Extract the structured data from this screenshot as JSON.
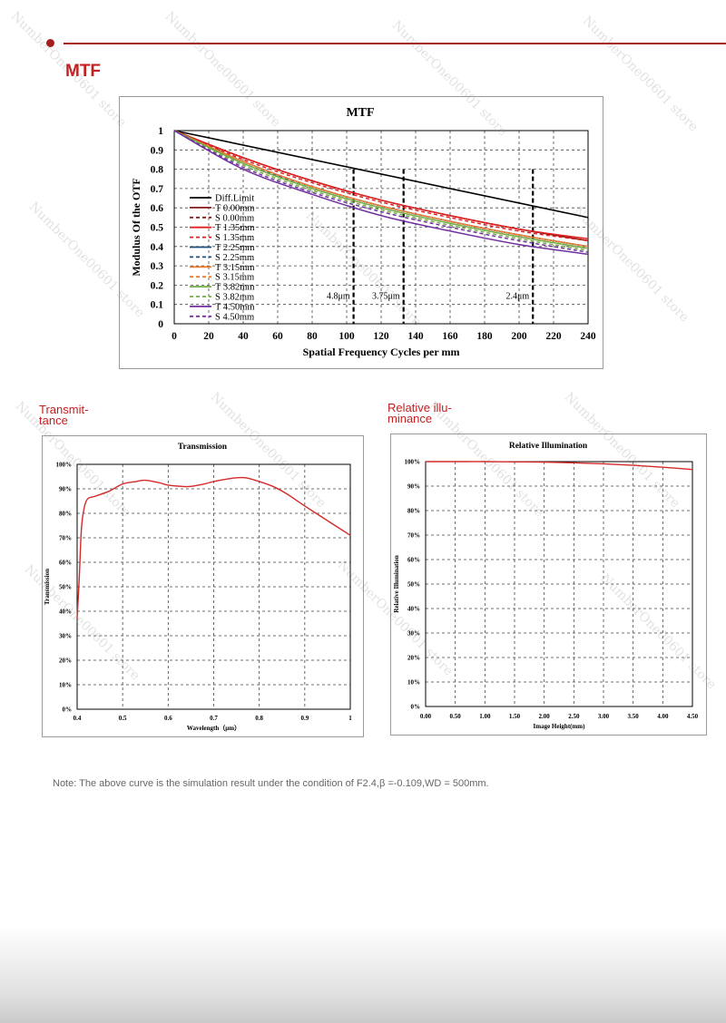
{
  "section_title": "MTF",
  "transmittance_label": "Transmit-\ntance",
  "illumination_label": "Relative illu-\nminance",
  "note": "Note: The above curve is the simulation result under the condition of F2.4,β =-0.109,WD = 500mm.",
  "watermark_text": "NumberOne00601 store",
  "colors": {
    "accent": "#c42020",
    "rule": "#a51d1d"
  },
  "chart_data": [
    {
      "type": "line",
      "title": "MTF",
      "xlabel": "Spatial Frequency Cycles per mm",
      "ylabel": "Modulus Of the OTF",
      "xlim": [
        0,
        240
      ],
      "ylim": [
        0,
        1
      ],
      "x_ticks": [
        "0",
        "20",
        "40",
        "60",
        "80",
        "100",
        "120",
        "140",
        "160",
        "180",
        "200",
        "220",
        "240"
      ],
      "y_ticks": [
        "0",
        "0.1",
        "0.2",
        "0.3",
        "0.4",
        "0.5",
        "0.6",
        "0.7",
        "0.8",
        "0.9",
        "1"
      ],
      "grid": true,
      "legend_position": "left",
      "markers": [
        {
          "x": 104,
          "label": "4.8μm"
        },
        {
          "x": 133,
          "label": "3.75μm"
        },
        {
          "x": 208,
          "label": "2.4μm"
        }
      ],
      "series": [
        {
          "name": "Diff.Limit",
          "color": "#000000",
          "dash": false,
          "x": [
            0,
            240
          ],
          "y": [
            1,
            0.55
          ]
        },
        {
          "name": "T 0.00mm",
          "color": "#8b1a1a",
          "dash": false,
          "x": [
            0,
            40,
            80,
            120,
            160,
            200,
            240
          ],
          "y": [
            1,
            0.86,
            0.74,
            0.64,
            0.56,
            0.49,
            0.43
          ]
        },
        {
          "name": "S 0.00mm",
          "color": "#8b1a1a",
          "dash": true,
          "x": [
            0,
            40,
            80,
            120,
            160,
            200,
            240
          ],
          "y": [
            1,
            0.86,
            0.74,
            0.64,
            0.56,
            0.49,
            0.43
          ]
        },
        {
          "name": "T 1.35mm",
          "color": "#e02020",
          "dash": false,
          "x": [
            0,
            40,
            80,
            120,
            160,
            200,
            240
          ],
          "y": [
            1,
            0.86,
            0.74,
            0.64,
            0.56,
            0.49,
            0.44
          ]
        },
        {
          "name": "S 1.35mm",
          "color": "#e02020",
          "dash": true,
          "x": [
            0,
            40,
            80,
            120,
            160,
            200,
            240
          ],
          "y": [
            1,
            0.85,
            0.73,
            0.63,
            0.55,
            0.48,
            0.43
          ]
        },
        {
          "name": "T 2.25mm",
          "color": "#1f4e79",
          "dash": false,
          "x": [
            0,
            40,
            80,
            120,
            160,
            200,
            240
          ],
          "y": [
            1,
            0.84,
            0.71,
            0.61,
            0.53,
            0.46,
            0.4
          ]
        },
        {
          "name": "S 2.25mm",
          "color": "#1f4e79",
          "dash": true,
          "x": [
            0,
            40,
            80,
            120,
            160,
            200,
            240
          ],
          "y": [
            1,
            0.83,
            0.71,
            0.61,
            0.53,
            0.46,
            0.4
          ]
        },
        {
          "name": "T 3.15mm",
          "color": "#ed7d31",
          "dash": false,
          "x": [
            0,
            40,
            80,
            120,
            160,
            200,
            240
          ],
          "y": [
            1,
            0.84,
            0.71,
            0.61,
            0.53,
            0.46,
            0.4
          ]
        },
        {
          "name": "S 3.15mm",
          "color": "#ed7d31",
          "dash": true,
          "x": [
            0,
            40,
            80,
            120,
            160,
            200,
            240
          ],
          "y": [
            1,
            0.83,
            0.7,
            0.6,
            0.52,
            0.45,
            0.39
          ]
        },
        {
          "name": "T 3.82mm",
          "color": "#70ad47",
          "dash": false,
          "x": [
            0,
            40,
            80,
            120,
            160,
            200,
            240
          ],
          "y": [
            1,
            0.83,
            0.7,
            0.6,
            0.52,
            0.45,
            0.39
          ]
        },
        {
          "name": "S 3.82mm",
          "color": "#70ad47",
          "dash": true,
          "x": [
            0,
            40,
            80,
            120,
            160,
            200,
            240
          ],
          "y": [
            1,
            0.82,
            0.69,
            0.59,
            0.51,
            0.44,
            0.38
          ]
        },
        {
          "name": "T 4.50mm",
          "color": "#7030a0",
          "dash": false,
          "x": [
            0,
            40,
            80,
            120,
            160,
            200,
            240
          ],
          "y": [
            1,
            0.8,
            0.67,
            0.56,
            0.48,
            0.41,
            0.36
          ]
        },
        {
          "name": "S 4.50mm",
          "color": "#7030a0",
          "dash": true,
          "x": [
            0,
            40,
            80,
            120,
            160,
            200,
            240
          ],
          "y": [
            1,
            0.81,
            0.68,
            0.58,
            0.5,
            0.43,
            0.37
          ]
        }
      ]
    },
    {
      "type": "line",
      "title": "Transmission",
      "xlabel": "Wavelength（μm）",
      "ylabel": "Transmission",
      "xlim": [
        0.4,
        1
      ],
      "ylim": [
        0,
        100
      ],
      "x_ticks": [
        "0.4",
        "0.5",
        "0.6",
        "0.7",
        "0.8",
        "0.9",
        "1"
      ],
      "y_ticks": [
        "0%",
        "10%",
        "20%",
        "30%",
        "40%",
        "50%",
        "60%",
        "70%",
        "80%",
        "90%",
        "100%"
      ],
      "grid": true,
      "series": [
        {
          "color": "#d42a2a",
          "x": [
            0.4,
            0.405,
            0.41,
            0.42,
            0.44,
            0.47,
            0.5,
            0.53,
            0.55,
            0.58,
            0.6,
            0.63,
            0.65,
            0.68,
            0.7,
            0.73,
            0.75,
            0.77,
            0.8,
            0.83,
            0.86,
            0.9,
            0.95,
            1.0
          ],
          "y": [
            37,
            55,
            75,
            85,
            87,
            89,
            92,
            93,
            93.5,
            92.5,
            91.5,
            91,
            91,
            92,
            93,
            94,
            94.5,
            94.5,
            93,
            91,
            88,
            83,
            77,
            71
          ]
        }
      ]
    },
    {
      "type": "line",
      "title": "Relative Illumination",
      "xlabel": "Image Height(mm)",
      "ylabel": "Relative Illumination",
      "xlim": [
        0,
        4.5
      ],
      "ylim": [
        0,
        100
      ],
      "x_ticks": [
        "0.00",
        "0.50",
        "1.00",
        "1.50",
        "2.00",
        "2.50",
        "3.00",
        "3.50",
        "4.00",
        "4.50"
      ],
      "y_ticks": [
        "0%",
        "10%",
        "20%",
        "30%",
        "40%",
        "50%",
        "60%",
        "70%",
        "80%",
        "90%",
        "100%"
      ],
      "grid": true,
      "series": [
        {
          "color": "#d42a2a",
          "x": [
            0,
            0.5,
            1.0,
            1.5,
            2.0,
            2.5,
            3.0,
            3.5,
            4.0,
            4.5
          ],
          "y": [
            100,
            100,
            100,
            99.9,
            99.8,
            99.5,
            99.1,
            98.5,
            97.7,
            96.8
          ]
        }
      ]
    }
  ]
}
